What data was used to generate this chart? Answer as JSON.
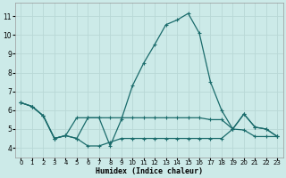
{
  "xlabel": "Humidex (Indice chaleur)",
  "bg_color": "#cceae8",
  "grid_color": "#b8d8d6",
  "line_color": "#1a6b6b",
  "xlim": [
    -0.5,
    23.5
  ],
  "ylim": [
    3.5,
    11.7
  ],
  "xticks": [
    0,
    1,
    2,
    3,
    4,
    5,
    6,
    7,
    8,
    9,
    10,
    11,
    12,
    13,
    14,
    15,
    16,
    17,
    18,
    19,
    20,
    21,
    22,
    23
  ],
  "yticks": [
    4,
    5,
    6,
    7,
    8,
    9,
    10,
    11
  ],
  "curve_main_x": [
    0,
    1,
    2,
    3,
    4,
    5,
    6,
    7,
    8,
    9,
    10,
    11,
    12,
    13,
    14,
    15,
    16,
    17,
    18,
    19,
    20,
    21,
    22,
    23
  ],
  "curve_main_y": [
    6.4,
    6.2,
    5.7,
    4.5,
    4.65,
    4.5,
    5.6,
    5.6,
    4.1,
    5.5,
    7.3,
    8.5,
    9.5,
    10.55,
    10.8,
    11.15,
    10.1,
    7.5,
    6.0,
    5.0,
    5.8,
    5.1,
    5.0,
    4.6
  ],
  "curve_mid_x": [
    0,
    1,
    2,
    3,
    4,
    5,
    6,
    7,
    8,
    9,
    10,
    11,
    12,
    13,
    14,
    15,
    16,
    17,
    18,
    19,
    20,
    21,
    22,
    23
  ],
  "curve_mid_y": [
    6.4,
    6.2,
    5.7,
    4.5,
    4.65,
    5.6,
    5.6,
    5.6,
    5.6,
    5.6,
    5.6,
    5.6,
    5.6,
    5.6,
    5.6,
    5.6,
    5.6,
    5.5,
    5.5,
    5.0,
    5.8,
    5.1,
    5.0,
    4.6
  ],
  "curve_low_x": [
    0,
    1,
    2,
    3,
    4,
    5,
    6,
    7,
    8,
    9,
    10,
    11,
    12,
    13,
    14,
    15,
    16,
    17,
    18,
    19,
    20,
    21,
    22,
    23
  ],
  "curve_low_y": [
    6.4,
    6.2,
    5.7,
    4.5,
    4.65,
    4.5,
    4.1,
    4.1,
    4.3,
    4.5,
    4.5,
    4.5,
    4.5,
    4.5,
    4.5,
    4.5,
    4.5,
    4.5,
    4.5,
    5.0,
    4.95,
    4.6,
    4.6,
    4.6
  ]
}
